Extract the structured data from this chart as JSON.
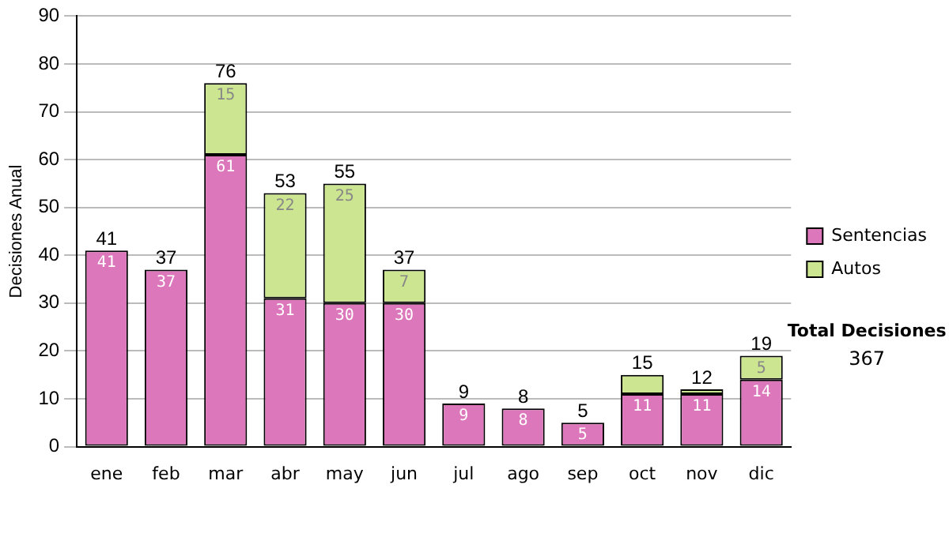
{
  "chart_data": {
    "type": "bar",
    "stacked": true,
    "ylabel": "Decisiones Anual",
    "categories": [
      "ene",
      "feb",
      "mar",
      "abr",
      "may",
      "jun",
      "jul",
      "ago",
      "sep",
      "oct",
      "nov",
      "dic"
    ],
    "series": [
      {
        "name": "Sentencias",
        "color": "#dd77bb",
        "values": [
          41,
          37,
          61,
          31,
          30,
          30,
          9,
          8,
          5,
          11,
          11,
          14
        ],
        "value_labels": [
          "41",
          "37",
          "61",
          "31",
          "30",
          "30",
          "9",
          "8",
          "5",
          "11",
          "11",
          "14"
        ]
      },
      {
        "name": "Autos",
        "color": "#cce590",
        "values": [
          null,
          null,
          15,
          22,
          25,
          7,
          null,
          null,
          null,
          4,
          1,
          5
        ],
        "value_labels": [
          null,
          null,
          "15",
          "22",
          "25",
          "7",
          null,
          null,
          null,
          null,
          null,
          "5"
        ]
      }
    ],
    "totals": [
      "41",
      "37",
      "76",
      "53",
      "55",
      "37",
      "9",
      "8",
      "5",
      "15",
      "12",
      "19"
    ],
    "ylim": [
      0,
      90
    ],
    "yticks": [
      0,
      10,
      20,
      30,
      40,
      50,
      60,
      70,
      80,
      90
    ],
    "grid": "y",
    "legend": "right",
    "annotations": [
      "Total Decisiones",
      "367"
    ]
  }
}
